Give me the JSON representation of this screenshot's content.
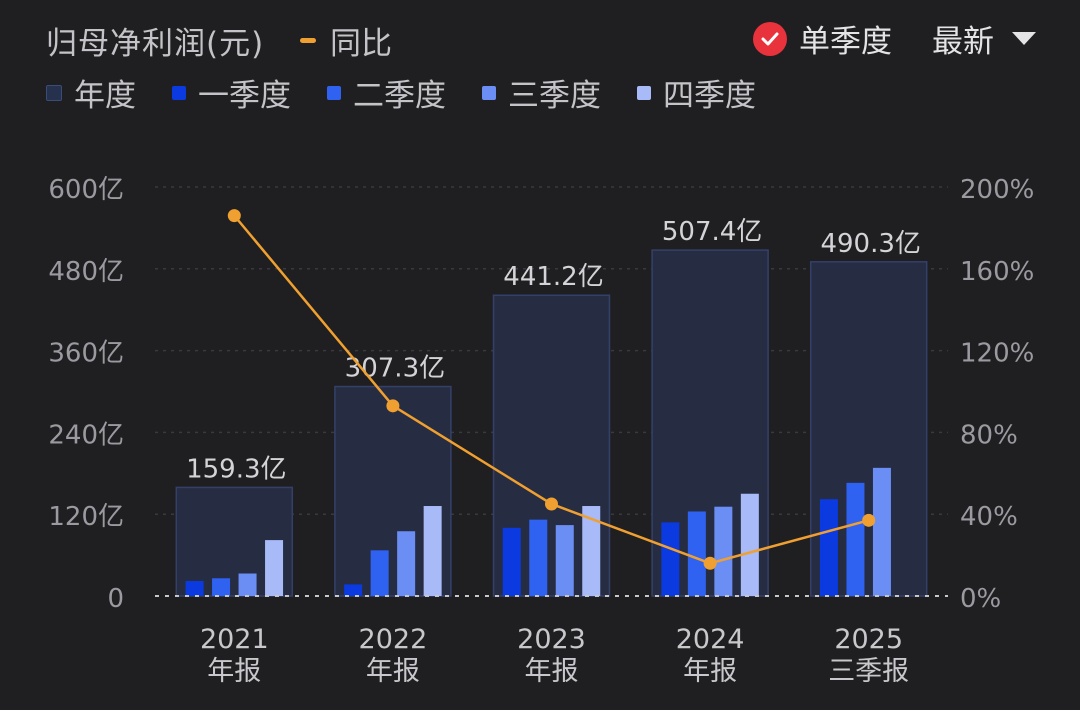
{
  "header": {
    "title": "归母净利润(元)",
    "yoy_label": "同比",
    "mode_label": "单季度",
    "latest_label": "最新"
  },
  "legend": [
    {
      "label": "年度",
      "color": "#26314d"
    },
    {
      "label": "一季度",
      "color": "#0a3ae0"
    },
    {
      "label": "二季度",
      "color": "#2f62f0"
    },
    {
      "label": "三季度",
      "color": "#6b8ef5"
    },
    {
      "label": "四季度",
      "color": "#a8baf7"
    }
  ],
  "chart_data": {
    "type": "bar",
    "categories": [
      [
        "2021",
        "年报"
      ],
      [
        "2022",
        "年报"
      ],
      [
        "2023",
        "年报"
      ],
      [
        "2024",
        "年报"
      ],
      [
        "2025",
        "三季报"
      ]
    ],
    "annual_values": [
      159.3,
      307.3,
      441.2,
      507.4,
      490.3
    ],
    "annual_labels": [
      "159.3亿",
      "307.3亿",
      "441.2亿",
      "507.4亿",
      "490.3亿"
    ],
    "quarterly": [
      [
        22,
        26,
        33,
        82
      ],
      [
        17,
        67,
        95,
        132
      ],
      [
        100,
        112,
        104,
        132
      ],
      [
        108,
        124,
        131,
        150
      ],
      [
        142,
        166,
        188
      ]
    ],
    "yoy_percent": [
      186,
      93,
      45,
      16,
      37
    ],
    "left_axis": {
      "min": 0,
      "max": 600,
      "ticks": [
        "0",
        "120亿",
        "240亿",
        "360亿",
        "480亿",
        "600亿"
      ]
    },
    "right_axis": {
      "min": 0,
      "max": 200,
      "ticks": [
        "0%",
        "40%",
        "80%",
        "120%",
        "160%",
        "200%"
      ]
    },
    "grid": true
  }
}
